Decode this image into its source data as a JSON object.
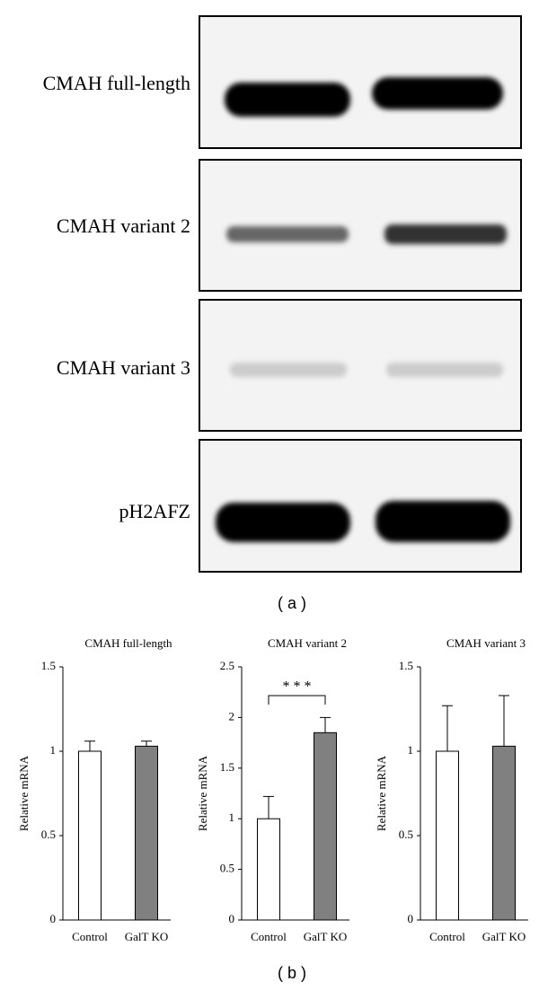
{
  "figure_a": {
    "panel_label": "( a )",
    "gels": [
      {
        "label": "CMAH full-length"
      },
      {
        "label": "CMAH variant 2"
      },
      {
        "label": "CMAH variant 3"
      },
      {
        "label": "pH2AFZ"
      }
    ]
  },
  "figure_b": {
    "panel_label": "( b )"
  },
  "chart_data": [
    {
      "type": "bar",
      "title": "CMAH full-length",
      "y_label": "Relative mRNA",
      "categories": [
        "Control",
        "GalT KO"
      ],
      "values": [
        1,
        1.03
      ],
      "errors": [
        0.06,
        0.03
      ],
      "colors": [
        "#ffffff",
        "#808080"
      ],
      "ylim": [
        0,
        1.5
      ],
      "yticks": [
        0,
        0.5,
        1,
        1.5
      ]
    },
    {
      "type": "bar",
      "title": "CMAH variant 2",
      "y_label": "Relative mRNA",
      "categories": [
        "Control",
        "GalT KO"
      ],
      "values": [
        1,
        1.85
      ],
      "errors": [
        0.22,
        0.15
      ],
      "colors": [
        "#ffffff",
        "#808080"
      ],
      "ylim": [
        0,
        2.5
      ],
      "yticks": [
        0,
        0.5,
        1,
        1.5,
        2,
        2.5
      ],
      "annotation": "* * *"
    },
    {
      "type": "bar",
      "title": "CMAH variant 3",
      "y_label": "Relative mRNA",
      "categories": [
        "Control",
        "GalT KO"
      ],
      "values": [
        1,
        1.03
      ],
      "errors": [
        0.27,
        0.3
      ],
      "colors": [
        "#ffffff",
        "#808080"
      ],
      "ylim": [
        0,
        1.5
      ],
      "yticks": [
        0,
        0.5,
        1,
        1.5
      ]
    }
  ]
}
